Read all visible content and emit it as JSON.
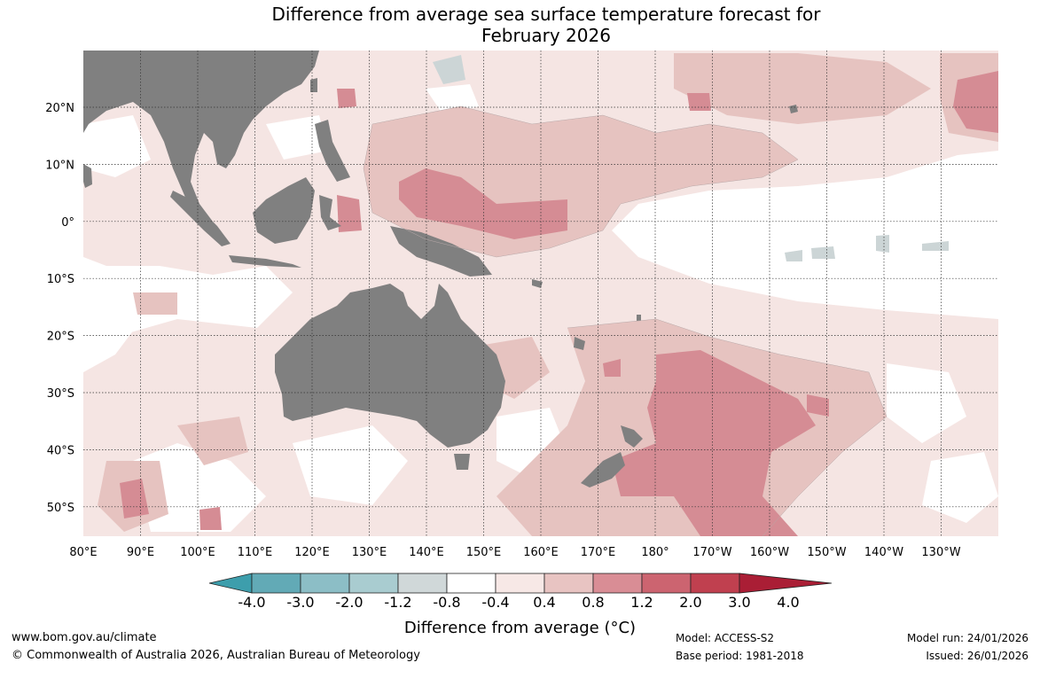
{
  "title": {
    "line1": "Difference from average sea surface temperature forecast for",
    "line2": "February 2026"
  },
  "map": {
    "lat_labels": [
      "20°N",
      "10°N",
      "0°",
      "10°S",
      "20°S",
      "30°S",
      "40°S",
      "50°S"
    ],
    "lon_labels": [
      "80°E",
      "90°E",
      "100°E",
      "110°E",
      "120°E",
      "130°E",
      "140°E",
      "150°E",
      "160°E",
      "170°E",
      "180°",
      "170°W",
      "160°W",
      "150°W",
      "140°W",
      "130°W"
    ],
    "land_color": "#808080",
    "grid": "dotted"
  },
  "colorbar": {
    "labels": [
      "-4.0",
      "-3.0",
      "-2.0",
      "-1.2",
      "-0.8",
      "-0.4",
      "0.4",
      "0.8",
      "1.2",
      "2.0",
      "3.0",
      "4.0"
    ],
    "colors": [
      "#3d9eac",
      "#62aab6",
      "#8cbec6",
      "#a9ccd0",
      "#d0d8d9",
      "#ffffff",
      "#f7e8e6",
      "#e8c4c2",
      "#d98d95",
      "#cc6470",
      "#c0404f",
      "#aa1e35"
    ],
    "title": "Difference from average (°C)"
  },
  "footer": {
    "url": "www.bom.gov.au/climate",
    "copyright": "© Commonwealth of Australia 2026, Australian Bureau of Meteorology",
    "model": "Model: ACCESS-S2",
    "base_period": "Base period: 1981-2018",
    "model_run": "Model run: 24/01/2026",
    "issued": "Issued: 26/01/2026"
  }
}
